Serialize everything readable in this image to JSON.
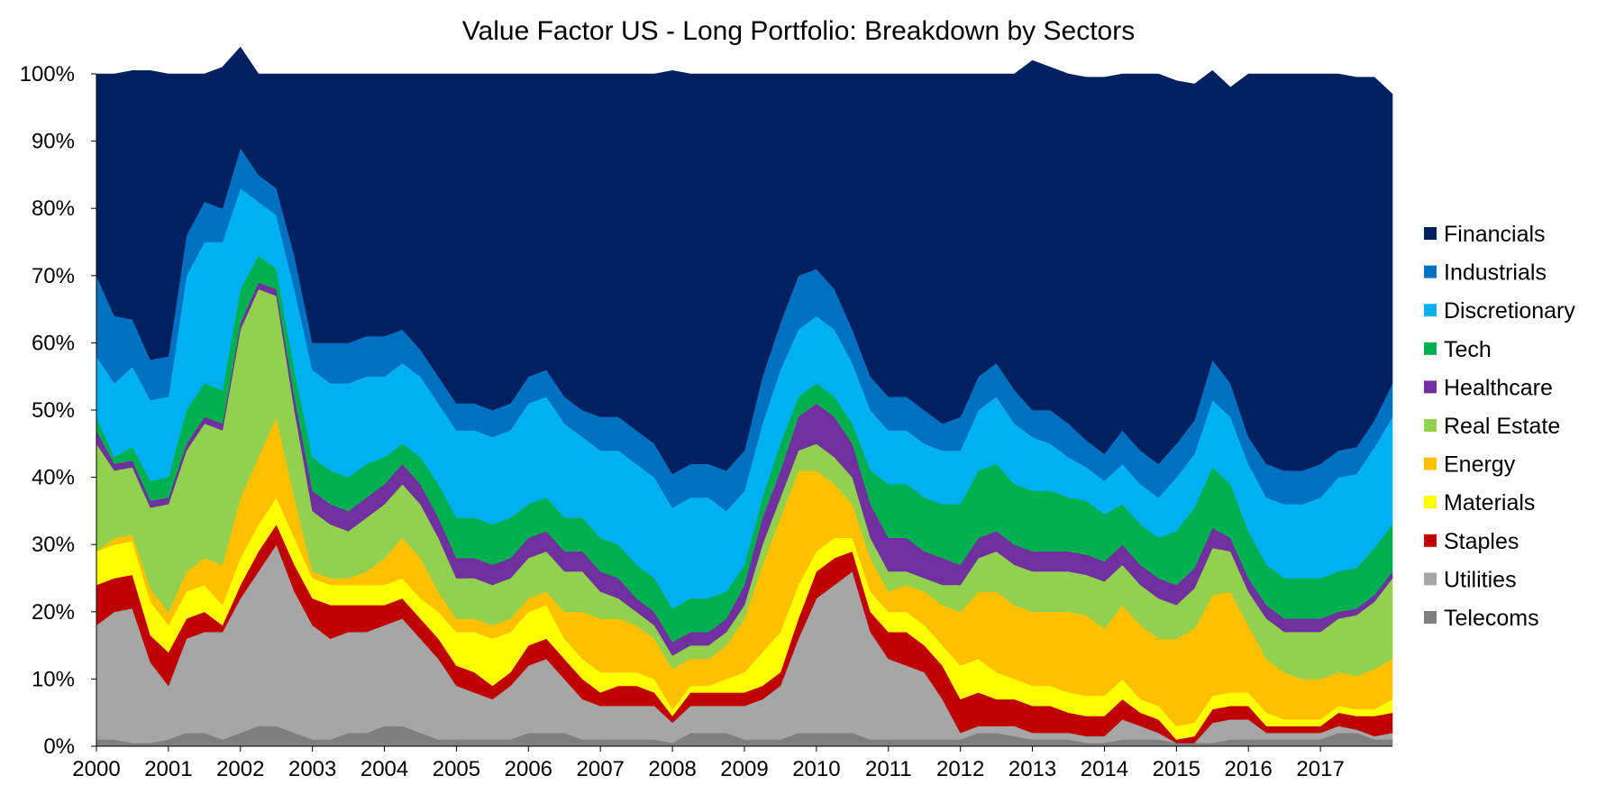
{
  "chart_data": {
    "type": "area",
    "stacked": true,
    "title": "Value Factor US - Long Portfolio: Breakdown by Sectors",
    "xlabel": "",
    "ylabel": "",
    "xlim": [
      2000,
      2018
    ],
    "ylim": [
      0,
      100
    ],
    "x_ticks": [
      "2000",
      "2001",
      "2002",
      "2003",
      "2004",
      "2005",
      "2006",
      "2007",
      "2008",
      "2009",
      "2010",
      "2011",
      "2012",
      "2013",
      "2014",
      "2015",
      "2016",
      "2017"
    ],
    "y_ticks": [
      "0%",
      "10%",
      "20%",
      "30%",
      "40%",
      "50%",
      "60%",
      "70%",
      "80%",
      "90%",
      "100%"
    ],
    "grid": false,
    "legend_position": "right",
    "x": [
      2000.0,
      2000.25,
      2000.5,
      2000.75,
      2001.0,
      2001.25,
      2001.5,
      2001.75,
      2002.0,
      2002.25,
      2002.5,
      2002.75,
      2003.0,
      2003.25,
      2003.5,
      2003.75,
      2004.0,
      2004.25,
      2004.5,
      2004.75,
      2005.0,
      2005.25,
      2005.5,
      2005.75,
      2006.0,
      2006.25,
      2006.5,
      2006.75,
      2007.0,
      2007.25,
      2007.5,
      2007.75,
      2008.0,
      2008.25,
      2008.5,
      2008.75,
      2009.0,
      2009.25,
      2009.5,
      2009.75,
      2010.0,
      2010.25,
      2010.5,
      2010.75,
      2011.0,
      2011.25,
      2011.5,
      2011.75,
      2012.0,
      2012.25,
      2012.5,
      2012.75,
      2013.0,
      2013.25,
      2013.5,
      2013.75,
      2014.0,
      2014.25,
      2014.5,
      2014.75,
      2015.0,
      2015.25,
      2015.5,
      2015.75,
      2016.0,
      2016.25,
      2016.5,
      2016.75,
      2017.0,
      2017.25,
      2017.5,
      2017.75,
      2018.0
    ],
    "series": [
      {
        "name": "Telecoms",
        "color": "#7f7f7f",
        "values": [
          1,
          1,
          0.5,
          0.5,
          1,
          2,
          2,
          1,
          2,
          3,
          3,
          2,
          1,
          1,
          2,
          2,
          3,
          3,
          2,
          1,
          1,
          1,
          1,
          1,
          2,
          2,
          2,
          1,
          1,
          1,
          1,
          1,
          0.5,
          2,
          2,
          2,
          1,
          1,
          1,
          2,
          2,
          2,
          2,
          1,
          1,
          1,
          1,
          1,
          1,
          2,
          2,
          1.5,
          1,
          1,
          1,
          0.5,
          0.5,
          1,
          1,
          1,
          0.5,
          0.5,
          0.5,
          1,
          1,
          1,
          1,
          1,
          1,
          2,
          2,
          1,
          1
        ]
      },
      {
        "name": "Utilities",
        "color": "#a6a6a6",
        "values": [
          17,
          19,
          20,
          12,
          8,
          14,
          15,
          16,
          20,
          23,
          27,
          21,
          17,
          15,
          15,
          15,
          15,
          16,
          14,
          12,
          8,
          7,
          6,
          8,
          10,
          11,
          8,
          6,
          5,
          5,
          5,
          5,
          3,
          4,
          4,
          4,
          5,
          6,
          8,
          14,
          20,
          22,
          24,
          16,
          12,
          11,
          10,
          6,
          1,
          1,
          1,
          1.5,
          1,
          1,
          1,
          1,
          1,
          3,
          2,
          1,
          0,
          0,
          3,
          3,
          3,
          1,
          1,
          1,
          1,
          1,
          0.5,
          0.5,
          1
        ]
      },
      {
        "name": "Staples",
        "color": "#c00000",
        "values": [
          6,
          5,
          5,
          4,
          5,
          3,
          3,
          1,
          2,
          3,
          3,
          4,
          4,
          5,
          4,
          4,
          3,
          3,
          3,
          3,
          3,
          3,
          2,
          2,
          3,
          3,
          3,
          3,
          2,
          3,
          3,
          2,
          1,
          2,
          2,
          2,
          2,
          2,
          2,
          3,
          4,
          4,
          3,
          3,
          4,
          5,
          4,
          5,
          5,
          5,
          4,
          4,
          4,
          4,
          3,
          3,
          3,
          3,
          2,
          2,
          0.5,
          1,
          2,
          2,
          2,
          1,
          1,
          1,
          1,
          2,
          2,
          3,
          3
        ]
      },
      {
        "name": "Materials",
        "color": "#ffff00",
        "values": [
          5,
          5,
          5,
          5,
          4,
          4,
          4,
          3,
          4,
          4,
          4,
          4,
          3,
          3,
          3,
          3,
          3,
          3,
          3,
          4,
          5,
          6,
          7,
          6,
          5,
          5,
          3,
          3,
          3,
          2,
          2,
          2,
          1,
          1,
          1,
          2,
          3,
          5,
          6,
          5,
          3,
          3,
          2,
          3,
          3,
          3,
          3,
          3,
          5,
          5,
          4,
          3,
          3,
          3,
          3,
          3,
          3,
          3,
          2,
          2,
          2,
          2,
          2,
          2,
          2,
          2,
          1,
          1,
          1,
          1,
          1,
          1,
          2
        ]
      },
      {
        "name": "Energy",
        "color": "#ffc000",
        "values": [
          0,
          1,
          1,
          2,
          2,
          3,
          4,
          6,
          9,
          10,
          12,
          6,
          1,
          1,
          1,
          2,
          4,
          6,
          6,
          3,
          2,
          2,
          2,
          2,
          2,
          2,
          4,
          7,
          8,
          8,
          7,
          6,
          6,
          4,
          4,
          5,
          8,
          13,
          17,
          17,
          12,
          8,
          5,
          5,
          3,
          4,
          5,
          6,
          8,
          10,
          12,
          11,
          11,
          11,
          12,
          12,
          10,
          11,
          11,
          10,
          13,
          14,
          15,
          15,
          10,
          8,
          7,
          6,
          6,
          5,
          5,
          6,
          6
        ]
      },
      {
        "name": "Real Estate",
        "color": "#92d050",
        "values": [
          16,
          10,
          10,
          12,
          16,
          18,
          20,
          20,
          25,
          25,
          18,
          13,
          9,
          8,
          7,
          8,
          8,
          8,
          8,
          8,
          6,
          6,
          6,
          6,
          6,
          6,
          6,
          6,
          4,
          3,
          2,
          2,
          2,
          2,
          2,
          2,
          2,
          3,
          3,
          3,
          4,
          4,
          4,
          3,
          3,
          2,
          2,
          3,
          4,
          5,
          6,
          6,
          6,
          6,
          6,
          6,
          7,
          6,
          6,
          6,
          5,
          6,
          7,
          6,
          5,
          6,
          6,
          7,
          7,
          8,
          9,
          10,
          12
        ]
      },
      {
        "name": "Healthcare",
        "color": "#7030a0",
        "values": [
          2,
          1,
          1,
          1,
          1,
          1,
          1,
          1,
          1,
          1,
          1,
          2,
          3,
          3,
          3,
          3,
          3,
          3,
          3,
          3,
          3,
          3,
          3,
          3,
          3,
          3,
          3,
          3,
          3,
          3,
          2,
          2,
          2,
          2,
          2,
          2,
          3,
          4,
          4,
          5,
          6,
          6,
          5,
          5,
          5,
          5,
          4,
          4,
          3,
          3,
          3,
          3,
          3,
          3,
          3,
          3,
          3,
          3,
          3,
          3,
          3,
          3,
          3,
          2,
          2,
          2,
          2,
          2,
          2,
          1,
          1,
          1,
          1
        ]
      },
      {
        "name": "Tech",
        "color": "#00b050",
        "values": [
          2,
          1,
          2,
          3,
          3,
          5,
          5,
          5,
          5,
          4,
          3,
          4,
          5,
          5,
          5,
          5,
          4,
          3,
          4,
          5,
          6,
          6,
          6,
          6,
          5,
          5,
          5,
          5,
          5,
          5,
          5,
          5,
          5,
          5,
          5,
          4,
          3,
          3,
          4,
          3,
          3,
          3,
          3,
          5,
          8,
          8,
          8,
          8,
          9,
          10,
          10,
          9,
          9,
          9,
          8,
          8,
          7,
          6,
          6,
          6,
          8,
          9,
          9,
          8,
          7,
          6,
          6,
          6,
          6,
          6,
          6,
          7,
          7
        ]
      },
      {
        "name": "Discretionary",
        "color": "#00b0f0",
        "values": [
          9,
          11,
          12,
          12,
          12,
          20,
          21,
          22,
          15,
          8,
          8,
          12,
          13,
          13,
          14,
          13,
          12,
          12,
          12,
          12,
          13,
          13,
          13,
          13,
          15,
          15,
          14,
          12,
          13,
          14,
          15,
          15,
          15,
          15,
          15,
          12,
          11,
          11,
          11,
          10,
          10,
          10,
          9,
          9,
          8,
          8,
          8,
          8,
          8,
          9,
          10,
          9,
          8,
          7,
          6,
          5,
          5,
          6,
          6,
          6,
          8,
          8,
          10,
          10,
          10,
          10,
          11,
          11,
          12,
          14,
          14,
          15,
          16
        ]
      },
      {
        "name": "Industrials",
        "color": "#0070c0",
        "values": [
          12,
          10,
          7,
          6,
          6,
          6,
          6,
          5,
          6,
          4,
          4,
          5,
          4,
          6,
          6,
          6,
          6,
          5,
          4,
          4,
          4,
          4,
          4,
          4,
          4,
          4,
          4,
          4,
          5,
          5,
          5,
          5,
          5,
          5,
          5,
          6,
          6,
          7,
          7,
          8,
          7,
          6,
          5,
          5,
          5,
          5,
          5,
          4,
          5,
          5,
          5,
          5,
          4,
          5,
          5,
          4,
          4,
          5,
          5,
          5,
          5,
          5,
          6,
          5,
          4,
          5,
          5,
          5,
          5,
          4,
          4,
          4,
          5
        ]
      },
      {
        "name": "Financials",
        "color": "#002060",
        "values": [
          30,
          36,
          37,
          43,
          42,
          24,
          19,
          21,
          15,
          15,
          17,
          27,
          40,
          40,
          40,
          39,
          39,
          38,
          41,
          45,
          49,
          49,
          50,
          49,
          45,
          44,
          48,
          50,
          51,
          51,
          53,
          55,
          60,
          58,
          58,
          59,
          56,
          45,
          37,
          30,
          29,
          32,
          38,
          45,
          48,
          48,
          50,
          52,
          51,
          45,
          43,
          47,
          52,
          51,
          52,
          54,
          56,
          53,
          56,
          58,
          54,
          50,
          43,
          44,
          54,
          58,
          59,
          59,
          58,
          56,
          55,
          51,
          43
        ]
      }
    ]
  }
}
